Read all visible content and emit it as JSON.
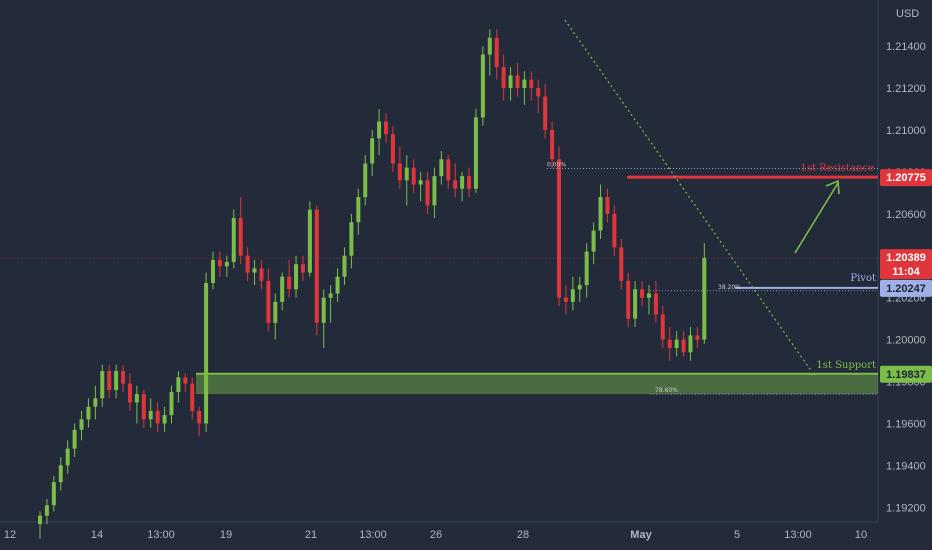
{
  "currency": "USD",
  "chart_data": {
    "type": "candlestick",
    "y_axis": {
      "range": [
        1.1913,
        1.2162
      ],
      "ticks": [
        "1.21400",
        "1.21200",
        "1.21000",
        "1.20800",
        "1.20600",
        "1.20400",
        "1.20200",
        "1.20000",
        "1.19800",
        "1.19600",
        "1.19400",
        "1.19200"
      ]
    },
    "x_axis": {
      "ticks": [
        {
          "label": "12",
          "bold": false
        },
        {
          "label": "14",
          "bold": false
        },
        {
          "label": "13:00",
          "bold": false
        },
        {
          "label": "19",
          "bold": false
        },
        {
          "label": "21",
          "bold": false
        },
        {
          "label": "13:00",
          "bold": false
        },
        {
          "label": "26",
          "bold": false
        },
        {
          "label": "28",
          "bold": false
        },
        {
          "label": "May",
          "bold": true
        },
        {
          "label": "5",
          "bold": false
        },
        {
          "label": "13:00",
          "bold": false
        },
        {
          "label": "10",
          "bold": false
        }
      ]
    },
    "colors": {
      "up": "#7cbd4a",
      "down": "#e0353a"
    },
    "candles": [
      [
        1.1912,
        1.1918,
        1.1905,
        1.1916
      ],
      [
        1.1916,
        1.1924,
        1.1912,
        1.1921
      ],
      [
        1.1921,
        1.1935,
        1.1918,
        1.1932
      ],
      [
        1.1932,
        1.1944,
        1.1928,
        1.194
      ],
      [
        1.194,
        1.1952,
        1.1936,
        1.1948
      ],
      [
        1.1948,
        1.196,
        1.1944,
        1.1957
      ],
      [
        1.1957,
        1.1966,
        1.1952,
        1.1962
      ],
      [
        1.1962,
        1.1972,
        1.1958,
        1.1968
      ],
      [
        1.1968,
        1.1978,
        1.1962,
        1.1972
      ],
      [
        1.1972,
        1.1988,
        1.1968,
        1.1985
      ],
      [
        1.1985,
        1.1988,
        1.1972,
        1.1976
      ],
      [
        1.1976,
        1.1988,
        1.1972,
        1.1985
      ],
      [
        1.1985,
        1.1988,
        1.1975,
        1.1979
      ],
      [
        1.1979,
        1.1984,
        1.1966,
        1.197
      ],
      [
        1.197,
        1.1978,
        1.196,
        1.1974
      ],
      [
        1.1974,
        1.1976,
        1.1958,
        1.1962
      ],
      [
        1.1962,
        1.1972,
        1.1958,
        1.1966
      ],
      [
        1.1966,
        1.197,
        1.1956,
        1.196
      ],
      [
        1.196,
        1.1968,
        1.1956,
        1.1964
      ],
      [
        1.1964,
        1.1978,
        1.196,
        1.1975
      ],
      [
        1.1975,
        1.1985,
        1.197,
        1.1982
      ],
      [
        1.1982,
        1.1984,
        1.1975,
        1.1979
      ],
      [
        1.1979,
        1.1982,
        1.1962,
        1.1966
      ],
      [
        1.1966,
        1.1968,
        1.1954,
        1.196
      ],
      [
        1.196,
        1.2032,
        1.1956,
        1.2027
      ],
      [
        1.2027,
        1.2042,
        1.2024,
        1.2038
      ],
      [
        1.2038,
        1.2042,
        1.203,
        1.2035
      ],
      [
        1.2035,
        1.204,
        1.203,
        1.2037
      ],
      [
        1.2037,
        1.2062,
        1.2034,
        1.2058
      ],
      [
        1.2058,
        1.2068,
        1.2036,
        1.204
      ],
      [
        1.204,
        1.2044,
        1.2028,
        1.2032
      ],
      [
        1.2032,
        1.2038,
        1.2026,
        1.2034
      ],
      [
        1.2034,
        1.2038,
        1.2024,
        1.2028
      ],
      [
        1.2028,
        1.2034,
        1.2004,
        1.2008
      ],
      [
        1.2008,
        1.2022,
        1.2,
        1.2018
      ],
      [
        1.2018,
        1.2032,
        1.2014,
        1.203
      ],
      [
        1.203,
        1.2038,
        1.202,
        1.2024
      ],
      [
        1.2024,
        1.204,
        1.202,
        1.2036
      ],
      [
        1.2036,
        1.204,
        1.2028,
        1.2032
      ],
      [
        1.2032,
        1.2066,
        1.203,
        1.2062
      ],
      [
        1.2062,
        1.2064,
        1.2002,
        1.2008
      ],
      [
        1.2008,
        1.2024,
        1.1996,
        1.202
      ],
      [
        1.202,
        1.2026,
        1.2008,
        1.2022
      ],
      [
        1.2022,
        1.2034,
        1.2018,
        1.203
      ],
      [
        1.203,
        1.2044,
        1.2026,
        1.204
      ],
      [
        1.204,
        1.206,
        1.2034,
        1.2056
      ],
      [
        1.2056,
        1.2072,
        1.205,
        1.2068
      ],
      [
        1.2068,
        1.2088,
        1.2064,
        1.2084
      ],
      [
        1.2084,
        1.21,
        1.2078,
        1.2096
      ],
      [
        1.2096,
        1.211,
        1.2088,
        1.2104
      ],
      [
        1.2104,
        1.2108,
        1.2094,
        1.2098
      ],
      [
        1.2098,
        1.2102,
        1.208,
        1.2084
      ],
      [
        1.2084,
        1.2092,
        1.2072,
        1.2076
      ],
      [
        1.2076,
        1.2088,
        1.2064,
        1.2082
      ],
      [
        1.2082,
        1.2086,
        1.207,
        1.2074
      ],
      [
        1.2074,
        1.208,
        1.2066,
        1.2076
      ],
      [
        1.2076,
        1.208,
        1.206,
        1.2064
      ],
      [
        1.2064,
        1.2082,
        1.2058,
        1.2078
      ],
      [
        1.2078,
        1.209,
        1.2074,
        1.2086
      ],
      [
        1.2086,
        1.2088,
        1.2072,
        1.2076
      ],
      [
        1.2076,
        1.2084,
        1.2068,
        1.2072
      ],
      [
        1.2072,
        1.208,
        1.2066,
        1.2078
      ],
      [
        1.2078,
        1.2082,
        1.2068,
        1.2072
      ],
      [
        1.2072,
        1.211,
        1.207,
        1.2106
      ],
      [
        1.2106,
        1.214,
        1.2102,
        1.2136
      ],
      [
        1.2136,
        1.2148,
        1.2126,
        1.2144
      ],
      [
        1.2144,
        1.2148,
        1.2124,
        1.213
      ],
      [
        1.213,
        1.2136,
        1.2114,
        1.212
      ],
      [
        1.212,
        1.213,
        1.2114,
        1.2126
      ],
      [
        1.2126,
        1.2132,
        1.2116,
        1.212
      ],
      [
        1.212,
        1.2128,
        1.2112,
        1.2124
      ],
      [
        1.2124,
        1.2128,
        1.2114,
        1.212
      ],
      [
        1.212,
        1.2124,
        1.2108,
        1.2116
      ],
      [
        1.2116,
        1.2122,
        1.2096,
        1.21
      ],
      [
        1.21,
        1.2104,
        1.2082,
        1.2086
      ],
      [
        1.2086,
        1.2092,
        1.2016,
        1.202
      ],
      [
        1.202,
        1.2026,
        1.2012,
        1.2018
      ],
      [
        1.2018,
        1.203,
        1.2014,
        1.2024
      ],
      [
        1.2024,
        1.203,
        1.2018,
        1.2026
      ],
      [
        1.2026,
        1.2046,
        1.202,
        1.2042
      ],
      [
        1.2042,
        1.2056,
        1.2036,
        1.2052
      ],
      [
        1.2052,
        1.2074,
        1.2048,
        1.2068
      ],
      [
        1.2068,
        1.2072,
        1.2056,
        1.206
      ],
      [
        1.206,
        1.2064,
        1.204,
        1.2044
      ],
      [
        1.2044,
        1.2048,
        1.2024,
        1.2028
      ],
      [
        1.2028,
        1.2032,
        1.2006,
        1.201
      ],
      [
        1.201,
        1.2028,
        1.2006,
        1.2024
      ],
      [
        1.2024,
        1.2028,
        1.2016,
        1.202
      ],
      [
        1.202,
        1.2026,
        1.2012,
        1.2022
      ],
      [
        1.2022,
        1.2028,
        1.2008,
        1.2012
      ],
      [
        1.2012,
        1.2016,
        1.1996,
        1.2
      ],
      [
        1.2,
        1.2006,
        1.199,
        1.1996
      ],
      [
        1.1996,
        1.2004,
        1.1992,
        1.2
      ],
      [
        1.2,
        1.2004,
        1.1992,
        1.1994
      ],
      [
        1.1994,
        1.2006,
        1.199,
        1.2002
      ],
      [
        1.2002,
        1.2006,
        1.1996,
        1.2
      ],
      [
        1.2,
        1.2046,
        1.1998,
        1.2039
      ]
    ],
    "levels": {
      "resistance": {
        "label": "1st Resistance",
        "value": "1.20775",
        "y": 1.20775,
        "color": "#e0353a"
      },
      "pivot": {
        "label": "Pivot",
        "value": "1.20247",
        "y": 1.20247,
        "color": "#9fb0e6"
      },
      "support": {
        "label": "1st Support",
        "value": "1.19837",
        "y": 1.19837,
        "color": "#7cbd4a"
      },
      "last": {
        "value": "1.20389",
        "countdown": "11:04",
        "y": 1.20389,
        "color": "#e0353a"
      }
    },
    "fib_labels": [
      "0.00%",
      "38.20%",
      "78.60%"
    ]
  }
}
